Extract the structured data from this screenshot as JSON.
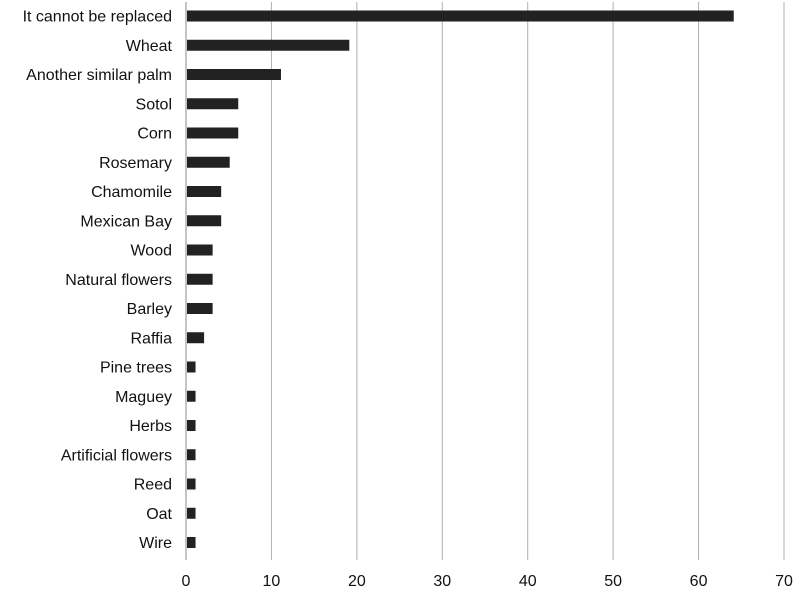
{
  "chart_data": {
    "type": "bar",
    "orientation": "horizontal",
    "title": "",
    "xlabel": "",
    "ylabel": "",
    "categories": [
      "It cannot be replaced",
      "Wheat",
      "Another similar palm",
      "Sotol",
      "Corn",
      "Rosemary",
      "Chamomile",
      "Mexican Bay",
      "Wood",
      "Natural flowers",
      "Barley",
      "Raffia",
      "Pine trees",
      "Maguey",
      "Herbs",
      "Artificial flowers",
      "Reed",
      "Oat",
      "Wire"
    ],
    "values": [
      64,
      19,
      11,
      6,
      6,
      5,
      4,
      4,
      3,
      3,
      3,
      2,
      1,
      1,
      1,
      1,
      1,
      1,
      1
    ],
    "xlim": [
      0,
      70
    ],
    "xticks": [
      0,
      10,
      20,
      30,
      40,
      50,
      60,
      70
    ],
    "grid": "vertical",
    "legend": "none",
    "bar_color": "#222222",
    "grid_color": "#b0b0b0"
  }
}
